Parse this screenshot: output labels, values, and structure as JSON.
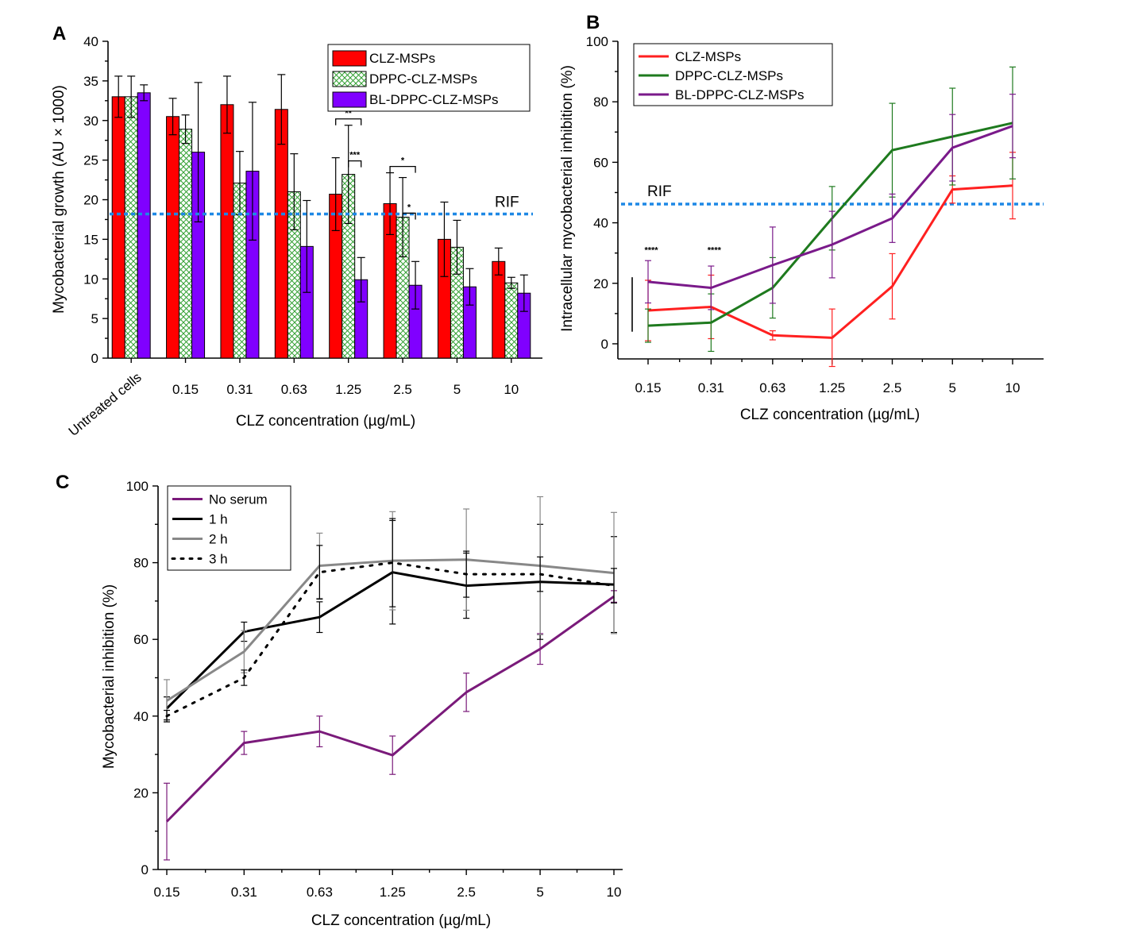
{
  "chart_data": [
    {
      "panel": "A",
      "type": "bar",
      "xlabel": "CLZ concentration (µg/mL)",
      "ylabel": "Mycobacterial growth (AU × 1000)",
      "ylim": [
        0,
        40
      ],
      "yticks": [
        0,
        5,
        10,
        15,
        20,
        25,
        30,
        35,
        40
      ],
      "categories": [
        "Untreated cells",
        "0.15",
        "0.31",
        "0.63",
        "1.25",
        "2.5",
        "5",
        "10"
      ],
      "series": [
        {
          "name": "CLZ-MSPs",
          "color": "#ff0000",
          "pattern": "solid",
          "values": [
            33.0,
            30.5,
            32.0,
            31.4,
            20.7,
            19.5,
            15.0,
            12.2
          ],
          "errors": [
            2.6,
            2.3,
            3.6,
            4.4,
            4.6,
            3.9,
            4.7,
            1.7
          ]
        },
        {
          "name": "DPPC-CLZ-MSPs",
          "color": "#33a033",
          "pattern": "crosshatch",
          "values": [
            33.0,
            28.9,
            22.1,
            21.0,
            23.2,
            17.8,
            14.0,
            9.5
          ],
          "errors": [
            2.6,
            1.8,
            4.0,
            4.8,
            6.2,
            5.0,
            3.4,
            0.7
          ]
        },
        {
          "name": "BL-DPPC-CLZ-MSPs",
          "color": "#8000ff",
          "pattern": "solid",
          "values": [
            33.5,
            26.0,
            23.6,
            14.1,
            9.9,
            9.2,
            9.0,
            8.2
          ],
          "errors": [
            1.0,
            8.8,
            8.7,
            5.8,
            2.8,
            3.0,
            2.3,
            2.3
          ]
        }
      ],
      "reference_lines": [
        {
          "label": "RIF",
          "y": 18.2,
          "color": "#1e88e5",
          "style": "dotted"
        }
      ],
      "annotations": [
        {
          "text": "**",
          "category": "1.25",
          "between": [
            "CLZ-MSPs",
            "BL-DPPC-CLZ-MSPs"
          ]
        },
        {
          "text": "***",
          "category": "1.25",
          "between": [
            "DPPC-CLZ-MSPs",
            "BL-DPPC-CLZ-MSPs"
          ]
        },
        {
          "text": "*",
          "category": "2.5",
          "between": [
            "CLZ-MSPs",
            "BL-DPPC-CLZ-MSPs"
          ]
        },
        {
          "text": "*",
          "category": "2.5",
          "between": [
            "DPPC-CLZ-MSPs",
            "BL-DPPC-CLZ-MSPs"
          ]
        }
      ],
      "legend_position": "top-right",
      "grid": false
    },
    {
      "panel": "B",
      "type": "line",
      "xlabel": "CLZ concentration (µg/mL)",
      "ylabel": "Intracellular mycobacterial inhibition (%)",
      "xscale": "log",
      "x": [
        "0.15",
        "0.31",
        "0.63",
        "1.25",
        "2.5",
        "5",
        "10"
      ],
      "ylim": [
        -5,
        100
      ],
      "yticks": [
        0,
        20,
        40,
        60,
        80,
        100
      ],
      "series": [
        {
          "name": "CLZ-MSPs",
          "color": "#ff2020",
          "values": [
            11.0,
            12.2,
            2.8,
            2.0,
            19.0,
            51.0,
            52.3
          ],
          "errors": [
            10.0,
            10.5,
            1.5,
            9.5,
            10.8,
            4.5,
            11.0
          ]
        },
        {
          "name": "DPPC-CLZ-MSPs",
          "color": "#1e7a1e",
          "values": [
            6.0,
            7.0,
            18.5,
            41.5,
            64.0,
            68.5,
            73.0
          ],
          "errors": [
            5.5,
            9.5,
            10.0,
            10.5,
            15.5,
            16.0,
            18.5
          ]
        },
        {
          "name": "BL-DPPC-CLZ-MSPs",
          "color": "#7a1a8a",
          "values": [
            20.5,
            18.5,
            26.0,
            32.8,
            41.5,
            64.8,
            72.0
          ],
          "errors": [
            7.0,
            7.2,
            12.6,
            11.0,
            8.0,
            11.0,
            10.5
          ]
        }
      ],
      "reference_lines": [
        {
          "label": "RIF",
          "y": 46.2,
          "color": "#1e88e5",
          "style": "dotted"
        }
      ],
      "annotations": [
        {
          "text": "****",
          "x": "0.15"
        },
        {
          "text": "****",
          "x": "0.31"
        }
      ],
      "legend_position": "top-left",
      "grid": false
    },
    {
      "panel": "C",
      "type": "line",
      "xlabel": "CLZ concentration (µg/mL)",
      "ylabel": "Mycobacterial inhibition (%)",
      "xscale": "log",
      "x": [
        "0.15",
        "0.31",
        "0.63",
        "1.25",
        "2.5",
        "5",
        "10"
      ],
      "ylim": [
        0,
        100
      ],
      "yticks": [
        0,
        20,
        40,
        60,
        80,
        100
      ],
      "series": [
        {
          "name": "No serum",
          "color": "#7a1a7a",
          "style": "solid",
          "values": [
            12.5,
            33.0,
            36.0,
            29.8,
            46.2,
            57.5,
            71.2
          ],
          "errors": [
            10.0,
            3.0,
            4.0,
            5.0,
            5.0,
            4.0,
            1.5
          ]
        },
        {
          "name": "1 h",
          "color": "#000000",
          "style": "solid",
          "values": [
            42.0,
            62.0,
            65.8,
            77.5,
            74.0,
            75.0,
            74.3
          ],
          "errors": [
            3.0,
            2.5,
            4.0,
            13.5,
            8.5,
            15.0,
            12.5
          ]
        },
        {
          "name": "2 h",
          "color": "#888888",
          "style": "solid",
          "values": [
            44.0,
            56.8,
            79.2,
            80.5,
            80.8,
            79.2,
            77.3
          ],
          "errors": [
            5.5,
            5.5,
            8.5,
            12.8,
            13.2,
            18.0,
            15.8
          ]
        },
        {
          "name": "3 h",
          "color": "#000000",
          "style": "dotted",
          "values": [
            40.0,
            50.0,
            77.5,
            80.0,
            77.0,
            77.0,
            74.0
          ],
          "errors": [
            1.5,
            2.0,
            7.0,
            11.5,
            6.0,
            4.5,
            4.5
          ]
        }
      ],
      "legend_position": "top-left",
      "grid": false
    }
  ]
}
